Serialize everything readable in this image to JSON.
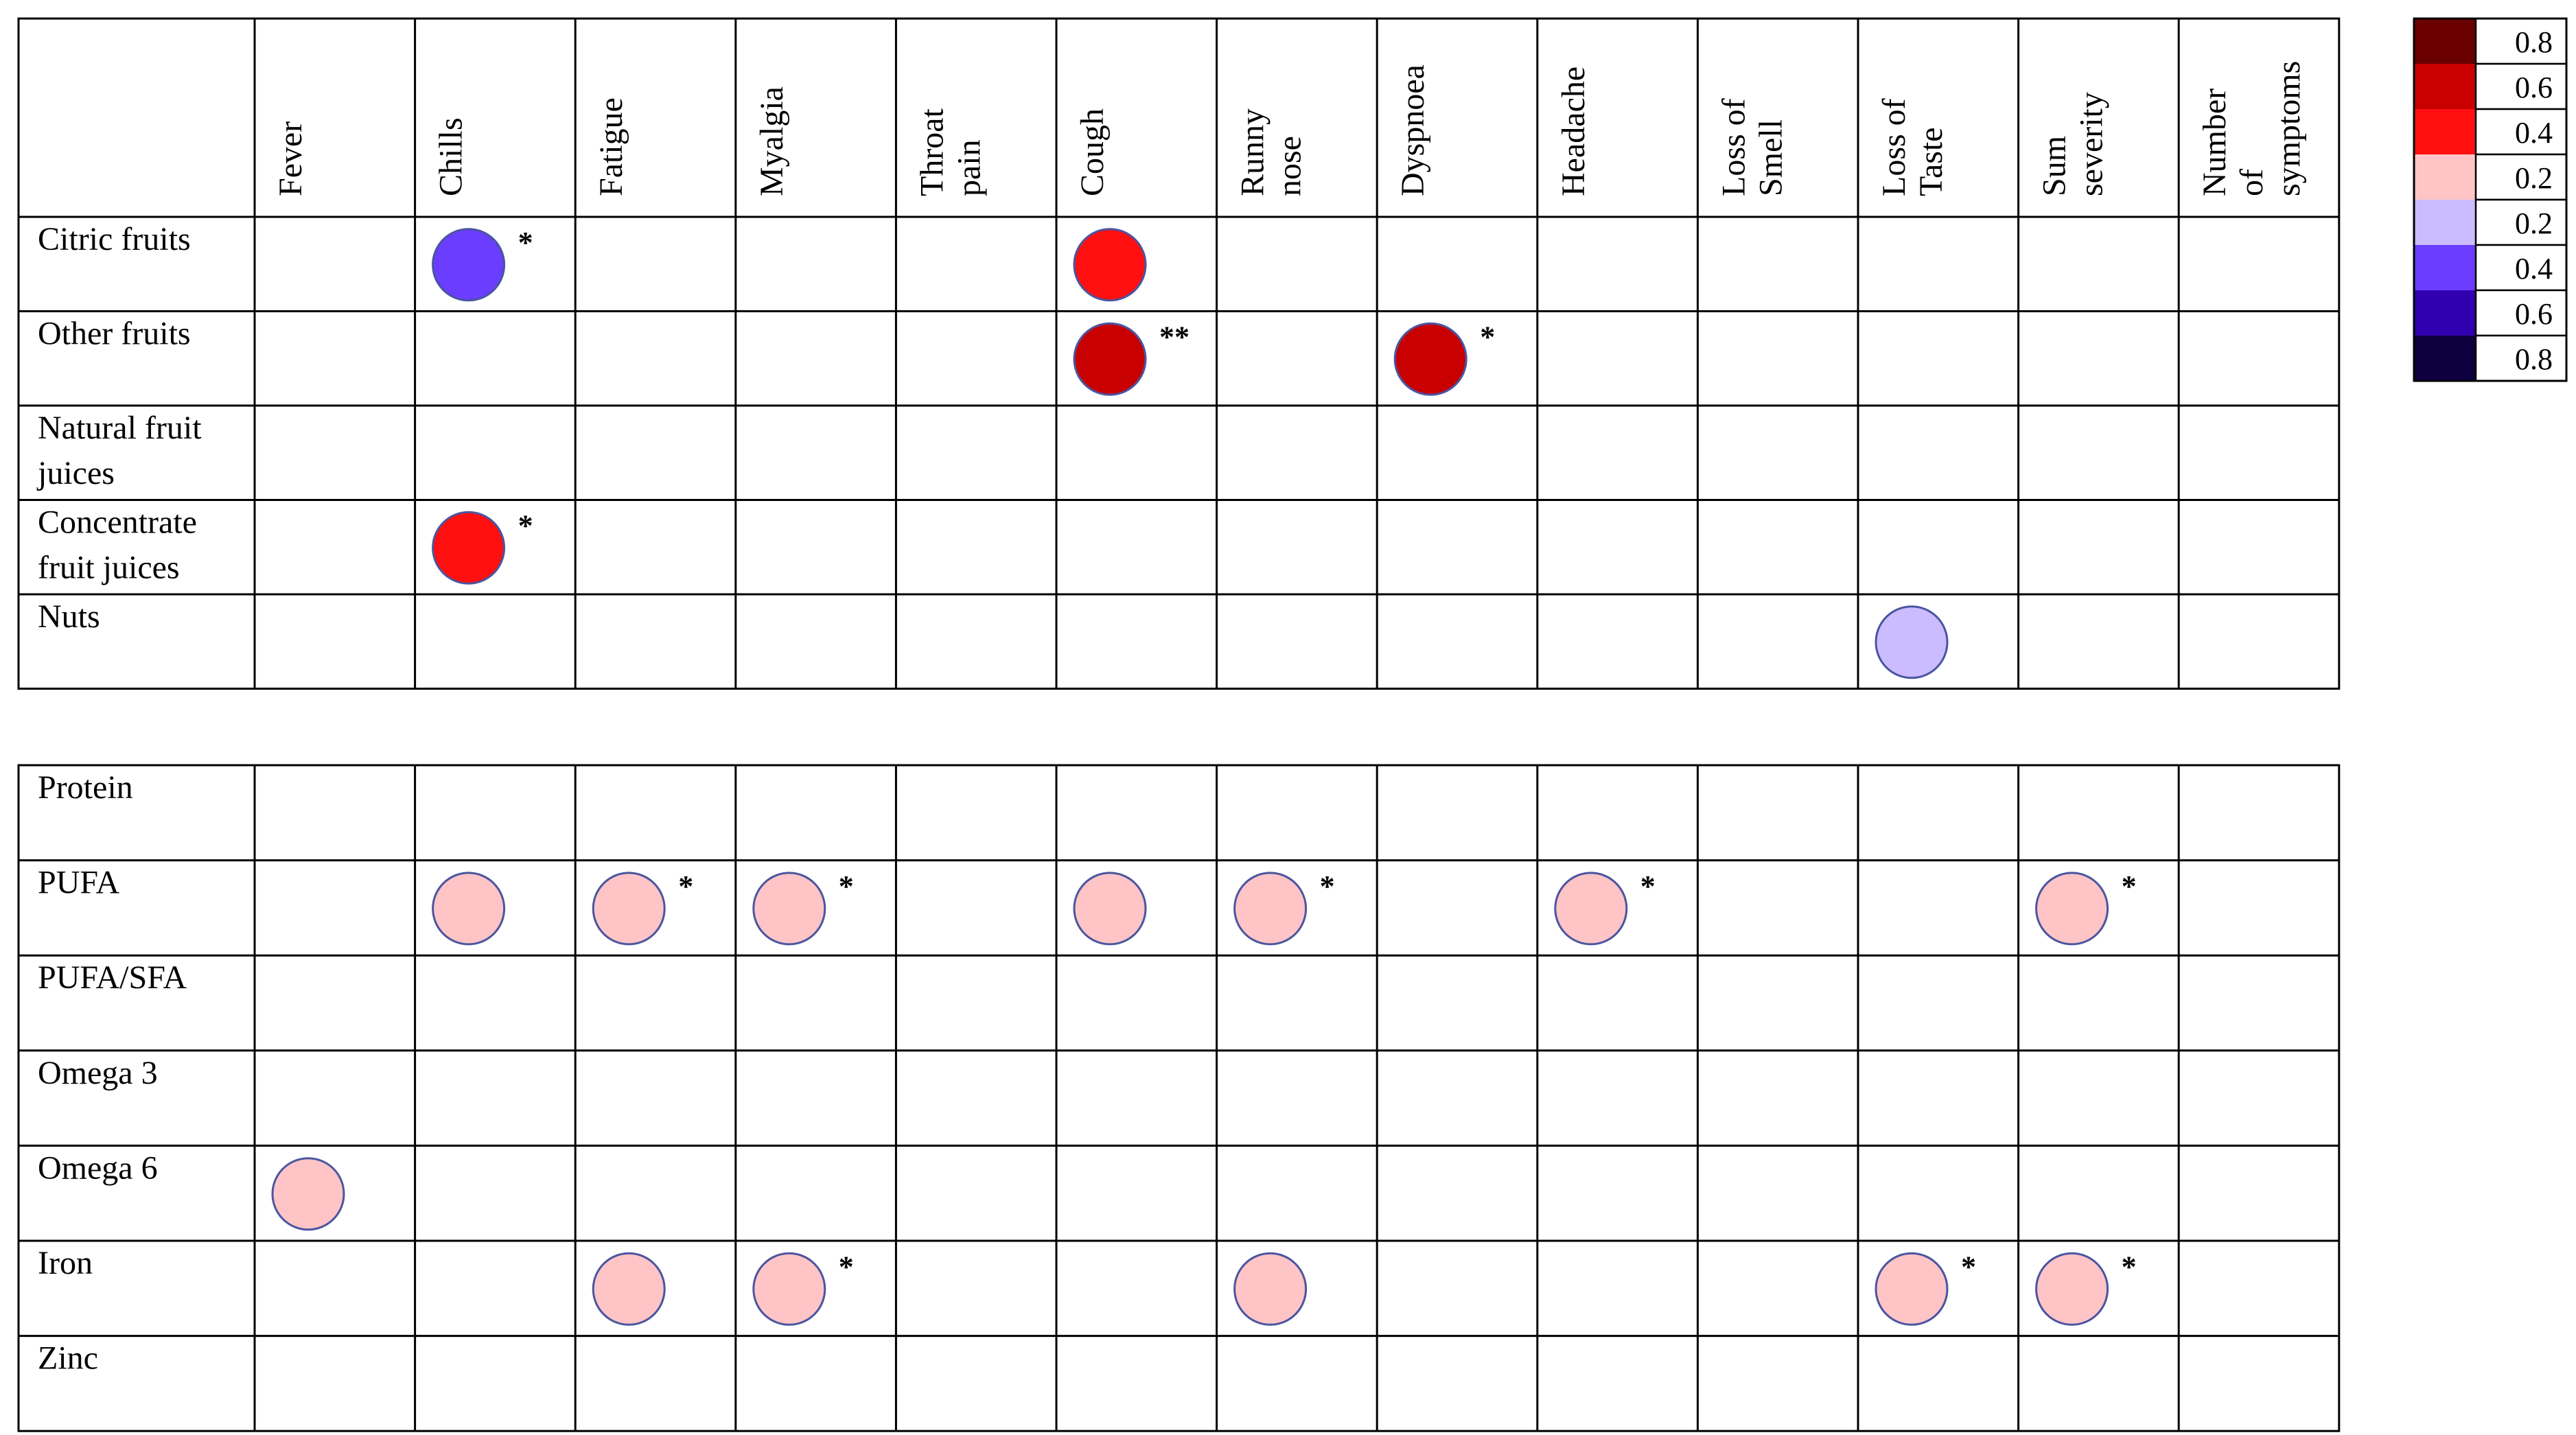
{
  "chart_data": {
    "type": "heatmap",
    "columns": [
      [
        "Fever"
      ],
      [
        "Chills"
      ],
      [
        "Fatigue"
      ],
      [
        "Myalgia"
      ],
      [
        "Throat",
        "pain"
      ],
      [
        "Cough"
      ],
      [
        "Runny",
        "nose"
      ],
      [
        "Dyspnoea"
      ],
      [
        "Headache"
      ],
      [
        "Loss of",
        "Smell"
      ],
      [
        "Loss of",
        "Taste"
      ],
      [
        "Sum",
        "severity"
      ],
      [
        "Number",
        "of",
        "symptoms"
      ]
    ],
    "tables": [
      {
        "rows": [
          [
            "Citric fruits"
          ],
          [
            "Other fruits"
          ],
          [
            "Natural fruit",
            "juices"
          ],
          [
            "Concentrate",
            "fruit juices"
          ],
          [
            "Nuts"
          ]
        ],
        "cells": [
          {
            "row": 0,
            "col": 1,
            "value": -0.4,
            "sig": "*"
          },
          {
            "row": 0,
            "col": 5,
            "value": 0.4,
            "sig": ""
          },
          {
            "row": 1,
            "col": 5,
            "value": 0.6,
            "sig": "**"
          },
          {
            "row": 1,
            "col": 7,
            "value": 0.6,
            "sig": "*"
          },
          {
            "row": 3,
            "col": 1,
            "value": 0.4,
            "sig": "*"
          },
          {
            "row": 4,
            "col": 10,
            "value": -0.2,
            "sig": ""
          }
        ]
      },
      {
        "rows": [
          [
            "Protein"
          ],
          [
            "PUFA"
          ],
          [
            "PUFA/SFA"
          ],
          [
            "Omega 3"
          ],
          [
            "Omega 6"
          ],
          [
            "Iron"
          ],
          [
            "Zinc"
          ]
        ],
        "cells": [
          {
            "row": 1,
            "col": 1,
            "value": 0.2,
            "sig": ""
          },
          {
            "row": 1,
            "col": 2,
            "value": 0.2,
            "sig": "*"
          },
          {
            "row": 1,
            "col": 3,
            "value": 0.2,
            "sig": "*"
          },
          {
            "row": 1,
            "col": 5,
            "value": 0.2,
            "sig": ""
          },
          {
            "row": 1,
            "col": 6,
            "value": 0.2,
            "sig": "*"
          },
          {
            "row": 1,
            "col": 8,
            "value": 0.2,
            "sig": "*"
          },
          {
            "row": 1,
            "col": 11,
            "value": 0.2,
            "sig": "*"
          },
          {
            "row": 4,
            "col": 0,
            "value": 0.2,
            "sig": ""
          },
          {
            "row": 5,
            "col": 2,
            "value": 0.2,
            "sig": ""
          },
          {
            "row": 5,
            "col": 3,
            "value": 0.2,
            "sig": "*"
          },
          {
            "row": 5,
            "col": 6,
            "value": 0.2,
            "sig": ""
          },
          {
            "row": 5,
            "col": 10,
            "value": 0.2,
            "sig": "*"
          },
          {
            "row": 5,
            "col": 11,
            "value": 0.2,
            "sig": "*"
          }
        ]
      }
    ],
    "legend": {
      "placement": "top-right",
      "entries": [
        {
          "label": "0.8",
          "value": 0.8,
          "color": "#6b0000"
        },
        {
          "label": "0.6",
          "value": 0.6,
          "color": "#c80000"
        },
        {
          "label": "0.4",
          "value": 0.4,
          "color": "#ff0f0f"
        },
        {
          "label": "0.2",
          "value": 0.2,
          "color": "#ffc4c6"
        },
        {
          "label": "0.2",
          "value": -0.2,
          "color": "#cbbcff"
        },
        {
          "label": "0.4",
          "value": -0.4,
          "color": "#6a3dff"
        },
        {
          "label": "0.6",
          "value": -0.6,
          "color": "#3000b0"
        },
        {
          "label": "0.8",
          "value": -0.8,
          "color": "#0e0040"
        }
      ]
    },
    "circle_stroke_color": "#4a55a0"
  }
}
